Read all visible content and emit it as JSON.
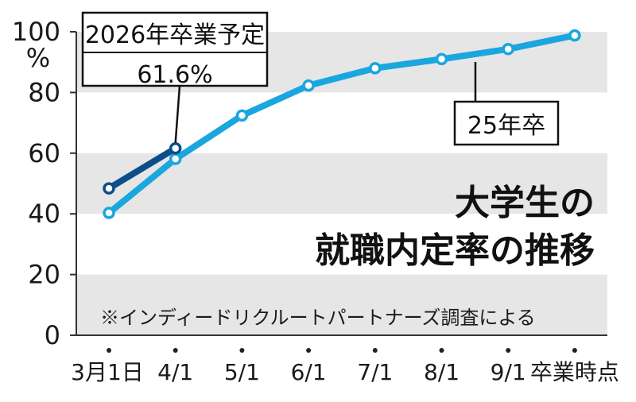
{
  "chart_data": {
    "type": "line",
    "title_lines": [
      "大学生の",
      "就職内定率の推移"
    ],
    "source_note": "※インディードリクルートパートナーズ調査による",
    "ylabel": "%",
    "ylim": [
      0,
      100
    ],
    "y_ticks": [
      "100",
      "80",
      "60",
      "40",
      "20",
      "0"
    ],
    "categories": [
      "3月1日",
      "4/1",
      "5/1",
      "6/1",
      "7/1",
      "8/1",
      "9/1",
      "卒業時点"
    ],
    "series": [
      {
        "name": "25年卒",
        "color": "#1aa6de",
        "values": [
          40.3,
          58.1,
          72.4,
          82.3,
          88.0,
          91.0,
          94.3,
          98.8
        ]
      },
      {
        "name": "2026年卒業予定",
        "color": "#0d4e8a",
        "values": [
          48.4,
          61.6,
          null,
          null,
          null,
          null,
          null,
          null
        ]
      }
    ],
    "callout": {
      "label": "2026年卒業予定",
      "value": "61.6%"
    },
    "band_color": "#e6e6e6"
  }
}
